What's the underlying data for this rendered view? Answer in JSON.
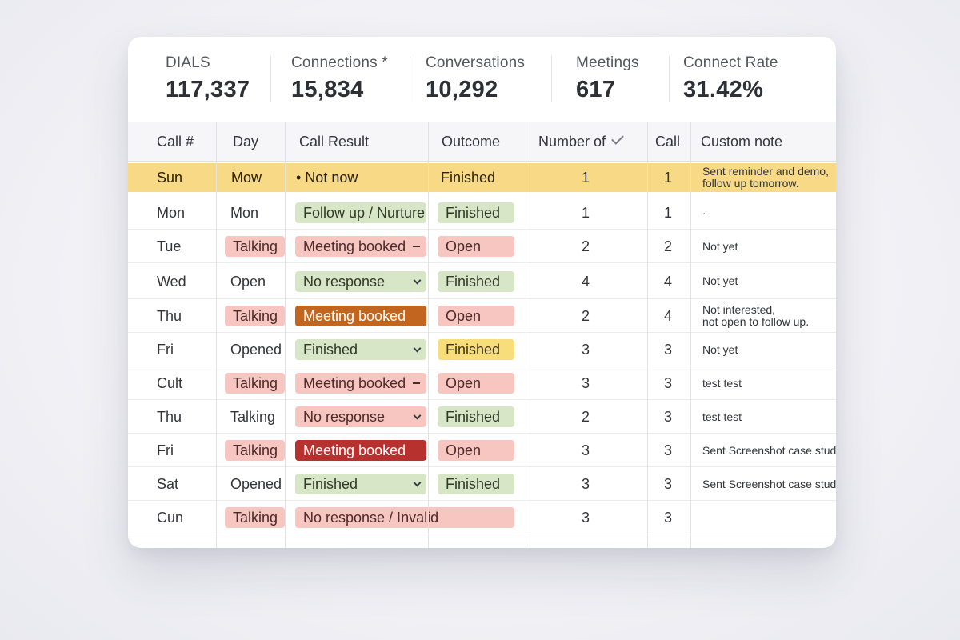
{
  "stats": [
    {
      "label": "DIALS",
      "value": "117,337"
    },
    {
      "label": "Connections *",
      "value": "15,834"
    },
    {
      "label": "Conversations",
      "value": "10,292"
    },
    {
      "label": "Meetings",
      "value": "617"
    },
    {
      "label": "Connect Rate",
      "value": "31.42%"
    }
  ],
  "columns": [
    "Call #",
    "Day",
    "Call Result",
    "Outcome",
    "Number of",
    "Call",
    "Custom note"
  ],
  "colors": {
    "highlight_row": "#f8d985",
    "pill_red": "#f8c6c1",
    "pill_green": "#d8e6c8",
    "pill_yellow": "#f8de7a",
    "pill_orange": "#c2661f",
    "pill_darkred": "#b7322e"
  },
  "rows": [
    {
      "call": "Sun",
      "day": "Mow",
      "day_style": "plain",
      "result": "• Not now",
      "result_style": "plain",
      "result_icon": "",
      "outcome": "Finished",
      "outcome_style": "plain",
      "number": "1",
      "count": "1",
      "note": [
        "Sent reminder and demo,",
        "follow up tomorrow."
      ],
      "highlight": true
    },
    {
      "call": "Mon",
      "day": "Mon",
      "day_style": "plain",
      "result": "Follow up / Nurture",
      "result_style": "green",
      "result_icon": "",
      "outcome": "Finished",
      "outcome_style": "green",
      "number": "1",
      "count": "1",
      "note": [
        "·"
      ],
      "highlight": false
    },
    {
      "call": "Tue",
      "day": "Talking",
      "day_style": "red",
      "result": "Meeting booked",
      "result_style": "red",
      "result_icon": "dash-icon",
      "outcome": "Open",
      "outcome_style": "red",
      "number": "2",
      "count": "2",
      "note": [
        "Not yet"
      ],
      "highlight": false
    },
    {
      "call": "Wed",
      "day": "Open",
      "day_style": "plain",
      "result": "No response",
      "result_style": "green",
      "result_icon": "chevron-down-icon",
      "outcome": "Finished",
      "outcome_style": "green",
      "number": "4",
      "count": "4",
      "note": [
        "Not yet"
      ],
      "highlight": false
    },
    {
      "call": "Thu",
      "day": "Talking",
      "day_style": "red",
      "result": "Meeting booked",
      "result_style": "orange",
      "result_icon": "",
      "outcome": "Open",
      "outcome_style": "red",
      "number": "2",
      "count": "4",
      "note": [
        "Not interested,",
        "not open to follow up."
      ],
      "highlight": false
    },
    {
      "call": "Fri",
      "day": "Opened",
      "day_style": "plain",
      "result": "Finished",
      "result_style": "green",
      "result_icon": "chevron-down-icon",
      "outcome": "Finished",
      "outcome_style": "yellow",
      "number": "3",
      "count": "3",
      "note": [
        "Not yet"
      ],
      "highlight": false
    },
    {
      "call": "Cult",
      "day": "Talking",
      "day_style": "red",
      "result": "Meeting booked",
      "result_style": "red",
      "result_icon": "dash-icon",
      "outcome": "Open",
      "outcome_style": "red",
      "number": "3",
      "count": "3",
      "note": [
        "test test"
      ],
      "highlight": false
    },
    {
      "call": "Thu",
      "day": "Talking",
      "day_style": "plain",
      "result": "No response",
      "result_style": "red",
      "result_icon": "chevron-down-icon",
      "outcome": "Finished",
      "outcome_style": "green",
      "number": "2",
      "count": "3",
      "note": [
        "test test"
      ],
      "highlight": false
    },
    {
      "call": "Fri",
      "day": "Talking",
      "day_style": "red",
      "result": "Meeting booked",
      "result_style": "darkred",
      "result_icon": "",
      "outcome": "Open",
      "outcome_style": "red",
      "number": "3",
      "count": "3",
      "note": [
        "Sent Screenshot case study"
      ],
      "highlight": false
    },
    {
      "call": "Sat",
      "day": "Opened",
      "day_style": "plain",
      "result": "Finished",
      "result_style": "green",
      "result_icon": "chevron-down-icon",
      "outcome": "Finished",
      "outcome_style": "green",
      "number": "3",
      "count": "3",
      "note": [
        "Sent Screenshot case study"
      ],
      "highlight": false
    },
    {
      "call": "Cun",
      "day": "Talking",
      "day_style": "red",
      "result": "No response / Invalid",
      "result_style": "red-wide",
      "result_icon": "",
      "outcome": "",
      "outcome_style": "none",
      "number": "3",
      "count": "3",
      "note": [],
      "highlight": false
    }
  ]
}
